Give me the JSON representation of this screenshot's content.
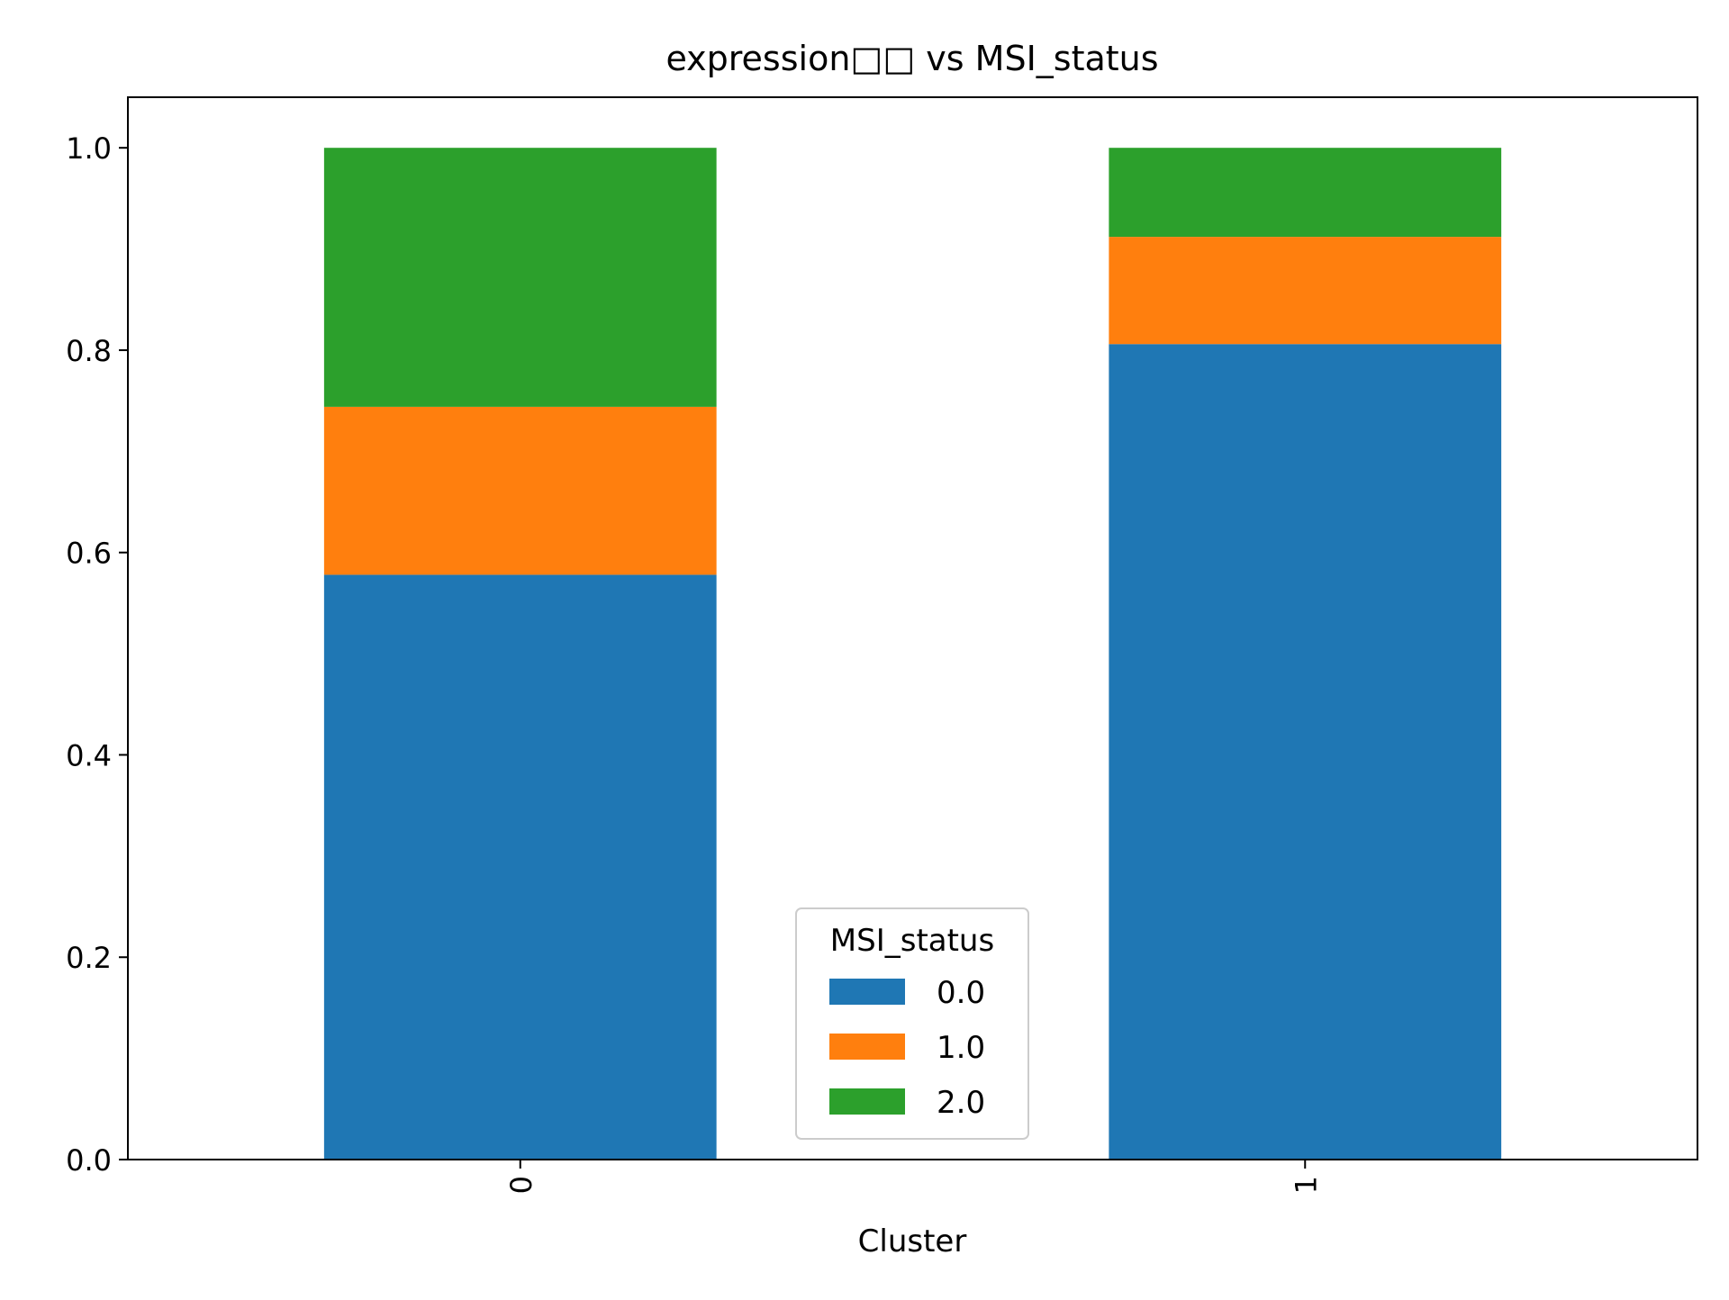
{
  "chart_data": {
    "type": "bar",
    "stacked": true,
    "title": "expression□□ vs MSI_status",
    "xlabel": "Cluster",
    "ylabel": "",
    "categories": [
      "0",
      "1"
    ],
    "ylim": [
      0,
      1.05
    ],
    "yticks": [
      0.0,
      0.2,
      0.4,
      0.6,
      0.8,
      1.0
    ],
    "ytick_labels": [
      "0.0",
      "0.2",
      "0.4",
      "0.6",
      "0.8",
      "1.0"
    ],
    "grid": false,
    "legend": {
      "title": "MSI_status",
      "placement": "bottom-center"
    },
    "series": [
      {
        "name": "0.0",
        "color": "#1f77b4",
        "values": [
          0.578,
          0.806
        ]
      },
      {
        "name": "1.0",
        "color": "#ff7f0e",
        "values": [
          0.166,
          0.106
        ]
      },
      {
        "name": "2.0",
        "color": "#2ca02c",
        "values": [
          0.256,
          0.088
        ]
      }
    ]
  }
}
